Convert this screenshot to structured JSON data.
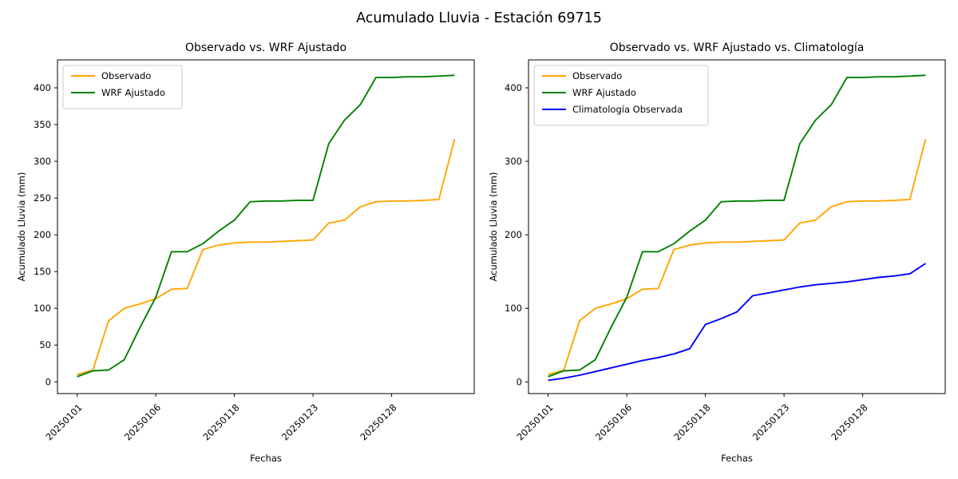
{
  "figure": {
    "suptitle": "Acumulado Lluvia - Estación 69715",
    "background": "#ffffff",
    "text_color": "#000000"
  },
  "chart_data": [
    {
      "type": "line",
      "title": "Observado vs. WRF Ajustado",
      "xlabel": "Fechas",
      "ylabel": "Acumulado Lluvia (mm)",
      "grid": false,
      "legend": {
        "position": "upper-left",
        "entries": [
          "Observado",
          "WRF Ajustado"
        ]
      },
      "x": [
        0,
        1,
        2,
        3,
        4,
        5,
        6,
        7,
        8,
        9,
        10,
        11,
        12,
        13,
        14,
        15,
        16,
        17,
        18,
        19,
        20,
        21,
        22,
        23,
        24
      ],
      "x_ticks": {
        "positions": [
          0,
          5,
          10,
          15,
          20
        ],
        "labels": [
          "20250101",
          "20250106",
          "20250118",
          "20250123",
          "20250128"
        ],
        "rotation_deg": 45
      },
      "y_ticks": [
        0,
        50,
        100,
        150,
        200,
        250,
        300,
        350,
        400
      ],
      "xlim": [
        -1.25,
        25.25
      ],
      "ylim": [
        -16,
        438
      ],
      "series": [
        {
          "name": "Observado",
          "color": "#FFA500",
          "values": [
            10,
            16,
            83,
            100,
            106,
            113,
            126,
            127,
            180,
            186,
            189,
            190,
            190,
            191,
            192,
            193,
            216,
            220,
            238,
            245,
            246,
            246,
            247,
            248,
            330
          ]
        },
        {
          "name": "WRF Ajustado",
          "color": "#008000",
          "values": [
            7,
            15,
            16,
            30,
            74,
            115,
            177,
            177,
            188,
            205,
            220,
            245,
            246,
            246,
            247,
            247,
            324,
            356,
            377,
            414,
            414,
            415,
            415,
            416,
            417
          ]
        }
      ]
    },
    {
      "type": "line",
      "title": "Observado vs. WRF Ajustado vs. Climatología",
      "xlabel": "Fechas",
      "ylabel": "Acumulado Lluvia (mm)",
      "grid": false,
      "legend": {
        "position": "upper-left",
        "entries": [
          "Observado",
          "WRF Ajustado",
          "Climatología Observada"
        ]
      },
      "x": [
        0,
        1,
        2,
        3,
        4,
        5,
        6,
        7,
        8,
        9,
        10,
        11,
        12,
        13,
        14,
        15,
        16,
        17,
        18,
        19,
        20,
        21,
        22,
        23,
        24
      ],
      "x_ticks": {
        "positions": [
          0,
          5,
          10,
          15,
          20
        ],
        "labels": [
          "20250101",
          "20250106",
          "20250118",
          "20250123",
          "20250128"
        ],
        "rotation_deg": 45
      },
      "y_ticks": [
        0,
        100,
        200,
        300,
        400
      ],
      "xlim": [
        -1.25,
        25.25
      ],
      "ylim": [
        -16,
        438
      ],
      "series": [
        {
          "name": "Observado",
          "color": "#FFA500",
          "values": [
            10,
            16,
            83,
            100,
            106,
            113,
            126,
            127,
            180,
            186,
            189,
            190,
            190,
            191,
            192,
            193,
            216,
            220,
            238,
            245,
            246,
            246,
            247,
            248,
            330
          ]
        },
        {
          "name": "WRF Ajustado",
          "color": "#008000",
          "values": [
            7,
            15,
            16,
            30,
            74,
            115,
            177,
            177,
            188,
            205,
            220,
            245,
            246,
            246,
            247,
            247,
            324,
            356,
            377,
            414,
            414,
            415,
            415,
            416,
            417
          ]
        },
        {
          "name": "Climatología Observada",
          "color": "#0000FF",
          "values": [
            2,
            5,
            9,
            14,
            19,
            24,
            29,
            33,
            38,
            45,
            78,
            86,
            95,
            117,
            121,
            125,
            129,
            132,
            134,
            136,
            139,
            142,
            144,
            147,
            161
          ]
        }
      ]
    }
  ]
}
